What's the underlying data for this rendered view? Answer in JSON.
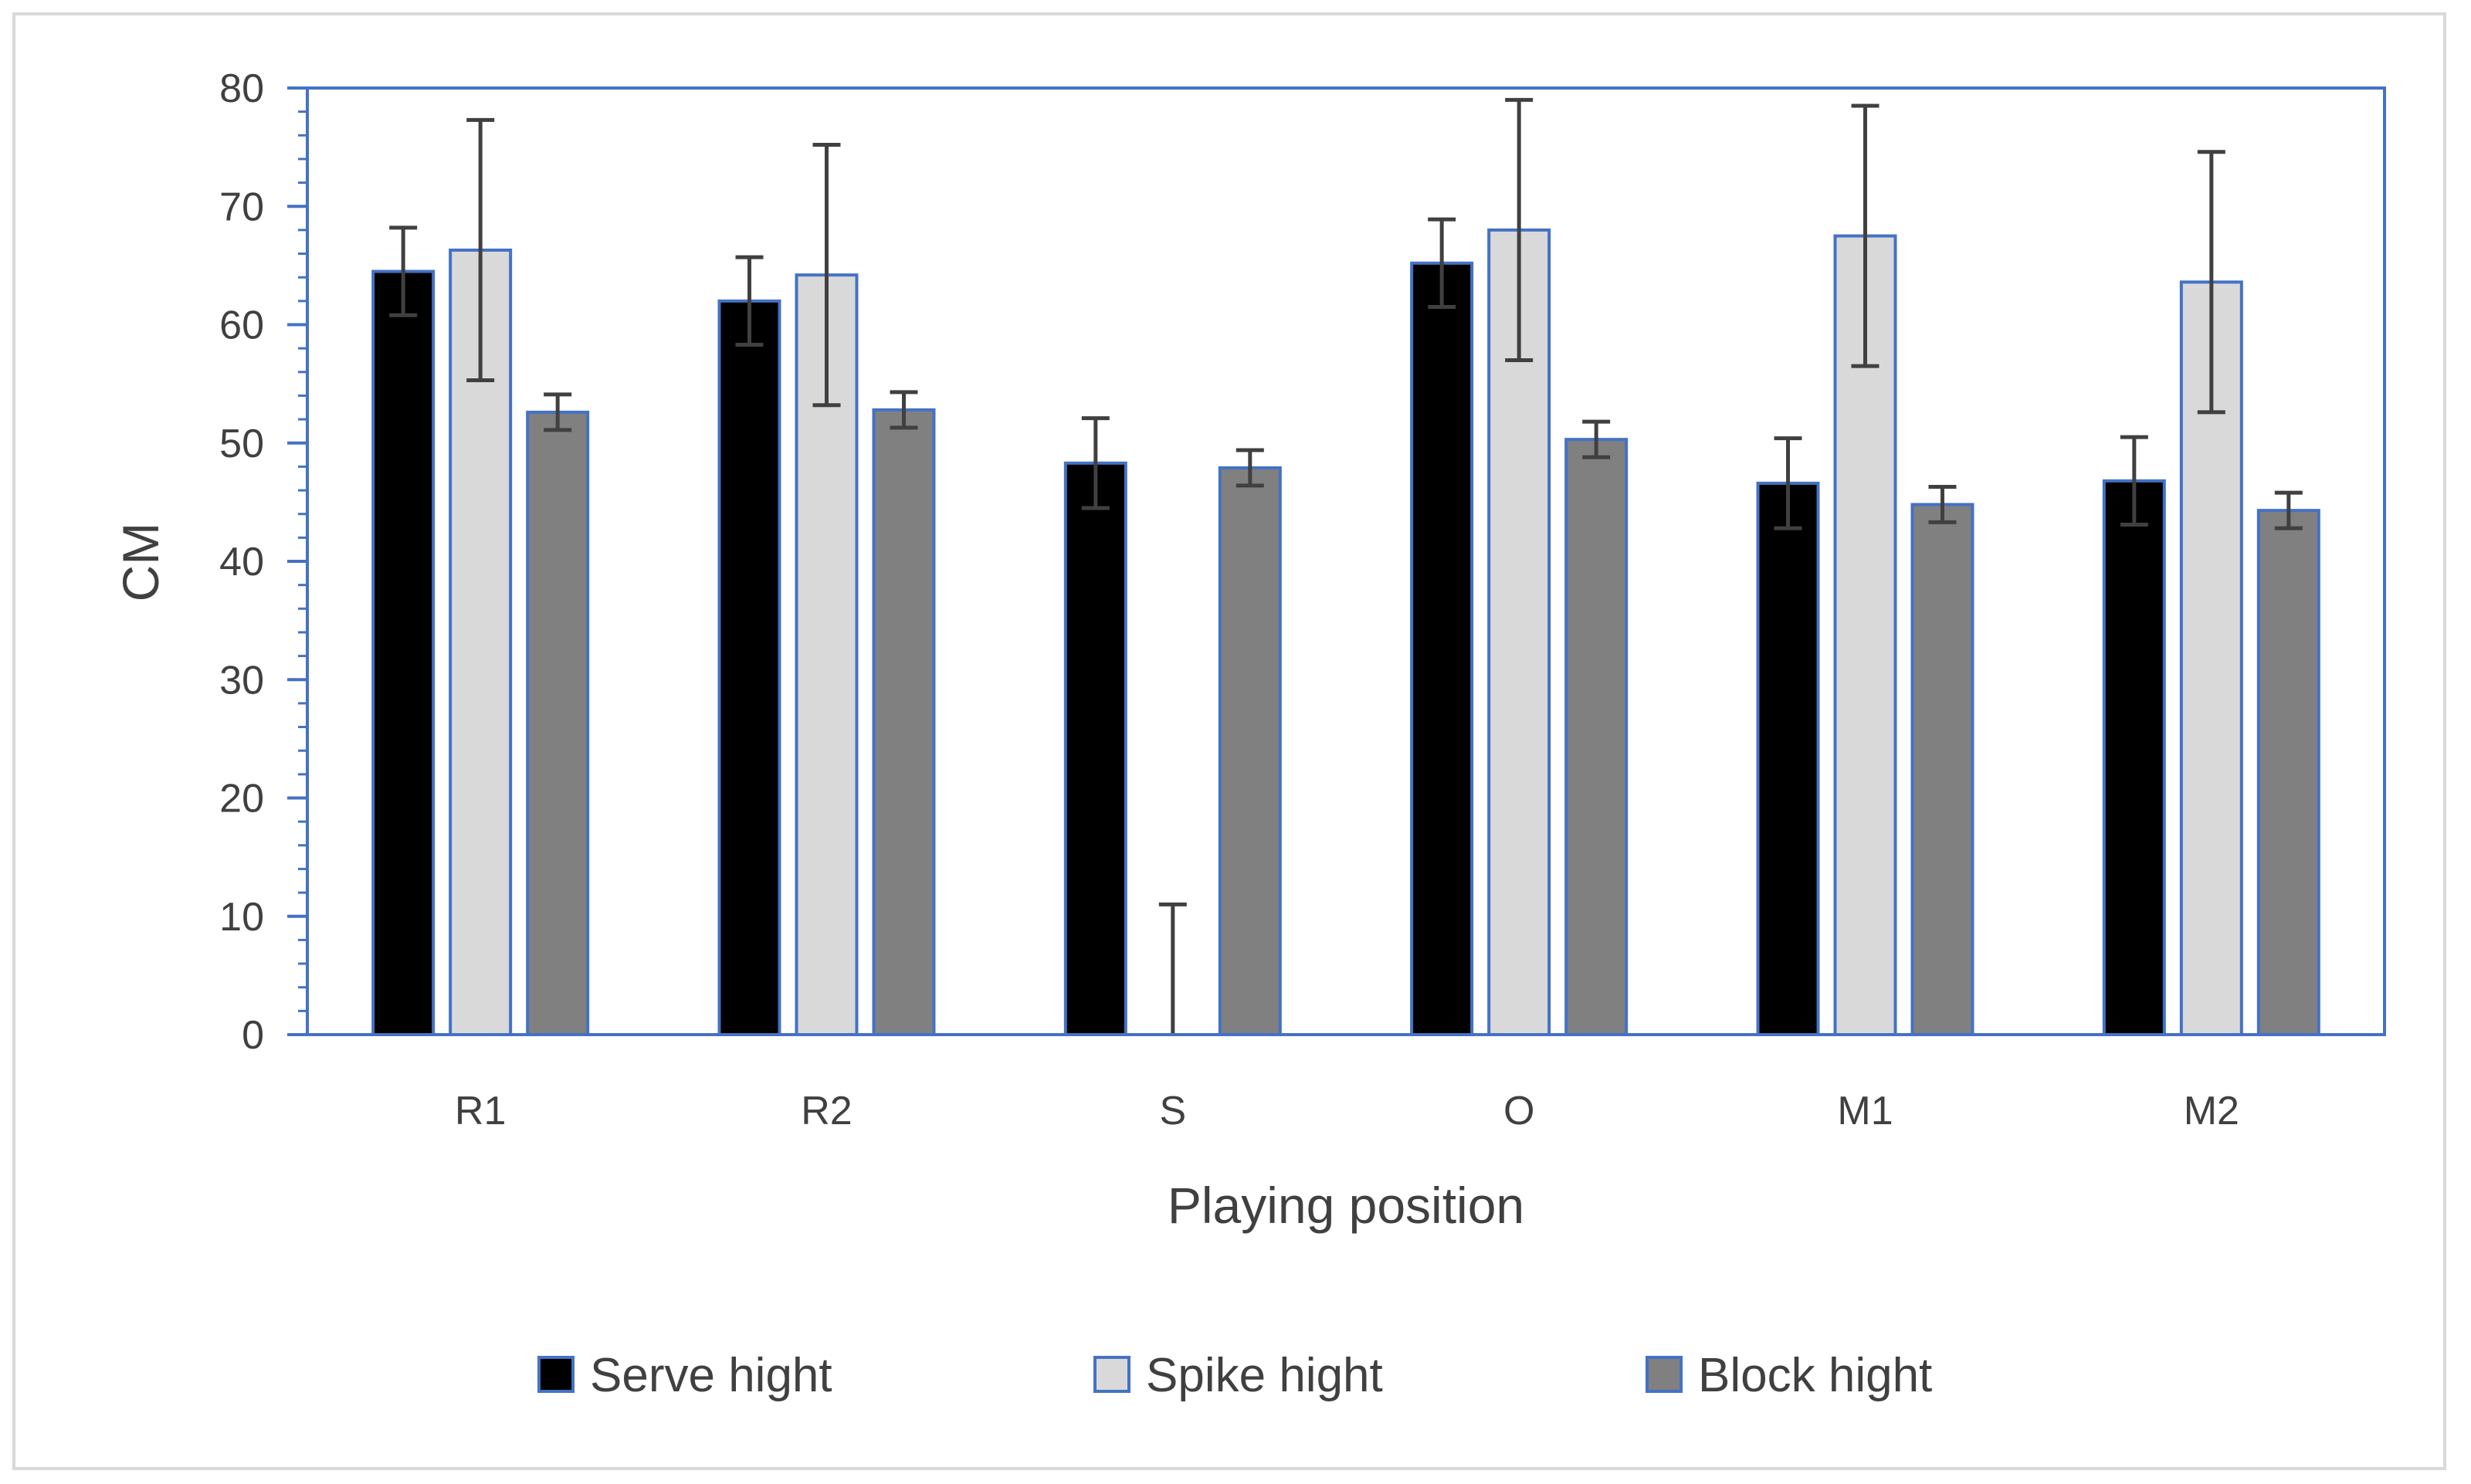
{
  "chart_data": {
    "type": "bar",
    "title": "",
    "xlabel": "Playing position",
    "ylabel": "CM",
    "ylim": [
      0,
      80
    ],
    "y_major_step": 10,
    "y_minor_step": 2,
    "categories": [
      "R1",
      "R2",
      "S",
      "O",
      "M1",
      "M2"
    ],
    "series": [
      {
        "name": "Serve hight",
        "color": "#000000",
        "values": [
          64.5,
          62.0,
          48.3,
          65.2,
          46.6,
          46.8
        ],
        "errors": [
          3.7,
          3.7,
          3.8,
          3.7,
          3.8,
          3.7
        ]
      },
      {
        "name": "Spike hight",
        "color": "#d9d9d9",
        "values": [
          66.3,
          64.2,
          0,
          68.0,
          67.5,
          63.6
        ],
        "errors": [
          11.0,
          11.0,
          11.0,
          11.0,
          11.0,
          11.0
        ]
      },
      {
        "name": "Block hight",
        "color": "#808080",
        "values": [
          52.6,
          52.8,
          47.9,
          50.3,
          44.8,
          44.3
        ],
        "errors": [
          1.5,
          1.5,
          1.5,
          1.5,
          1.5,
          1.5
        ]
      }
    ],
    "bar_border_color": "#4472c4",
    "error_bar_color": "#404040",
    "legend_position": "bottom"
  }
}
